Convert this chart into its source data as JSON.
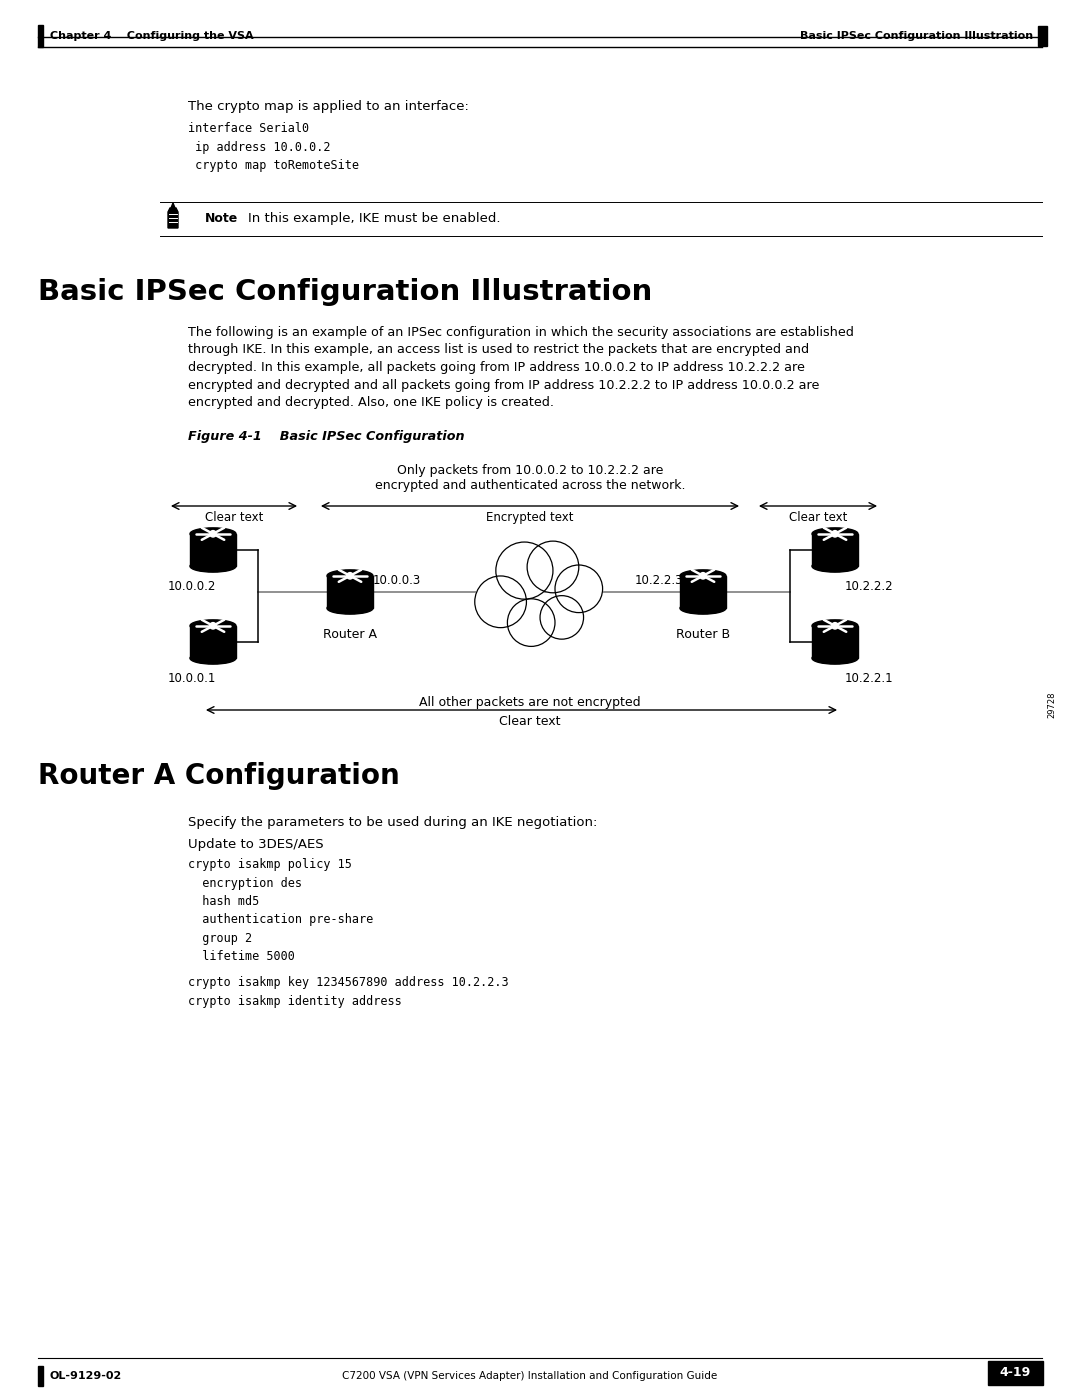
{
  "page_width": 10.8,
  "page_height": 13.97,
  "bg_color": "#ffffff",
  "header_left": "Chapter 4    Configuring the VSA",
  "header_right": "Basic IPSec Configuration Illustration",
  "footer_left": "OL-9129-02",
  "footer_center": "C7200 VSA (VPN Services Adapter) Installation and Configuration Guide",
  "footer_right": "4-19",
  "section1_intro": "The crypto map is applied to an interface:",
  "section1_code": "interface Serial0\n ip address 10.0.0.2\n crypto map toRemoteSite",
  "note_text": "In this example, IKE must be enabled.",
  "section2_title": "Basic IPSec Configuration Illustration",
  "section2_body": "The following is an example of an IPSec configuration in which the security associations are established\nthrough IKE. In this example, an access list is used to restrict the packets that are encrypted and\ndecrypted. In this example, all packets going from IP address 10.0.0.2 to IP address 10.2.2.2 are\nencrypted and decrypted and all packets going from IP address 10.2.2.2 to IP address 10.0.0.2 are\nencrypted and decrypted. Also, one IKE policy is created.",
  "figure_label": "Figure 4-1    Basic IPSec Configuration",
  "figure_note": "Only packets from 10.0.0.2 to 10.2.2.2 are\nencrypted and authenticated across the network.",
  "diag_labels": {
    "clear_text_left": "Clear text",
    "encrypted_text": "Encrypted text",
    "clear_text_right": "Clear text",
    "ip_1": "10.0.0.2",
    "ip_2": "10.0.0.1",
    "ip_3": "10.0.0.3",
    "ip_4": "10.2.2.3",
    "ip_5": "10.2.2.2",
    "ip_6": "10.2.2.1",
    "router_a": "Router A",
    "router_b": "Router B",
    "bottom_note": "All other packets are not encrypted",
    "bottom_label": "Clear text",
    "watermark": "29728"
  },
  "section3_title": "Router A Configuration",
  "section3_intro": "Specify the parameters to be used during an IKE negotiation:",
  "section3_update": "Update to 3DES/AES",
  "section3_code1": "crypto isakmp policy 15\n  encryption des\n  hash md5\n  authentication pre-share\n  group 2\n  lifetime 5000",
  "section3_code2": "crypto isakmp key 1234567890 address 10.2.2.3\ncrypto isakmp identity address"
}
